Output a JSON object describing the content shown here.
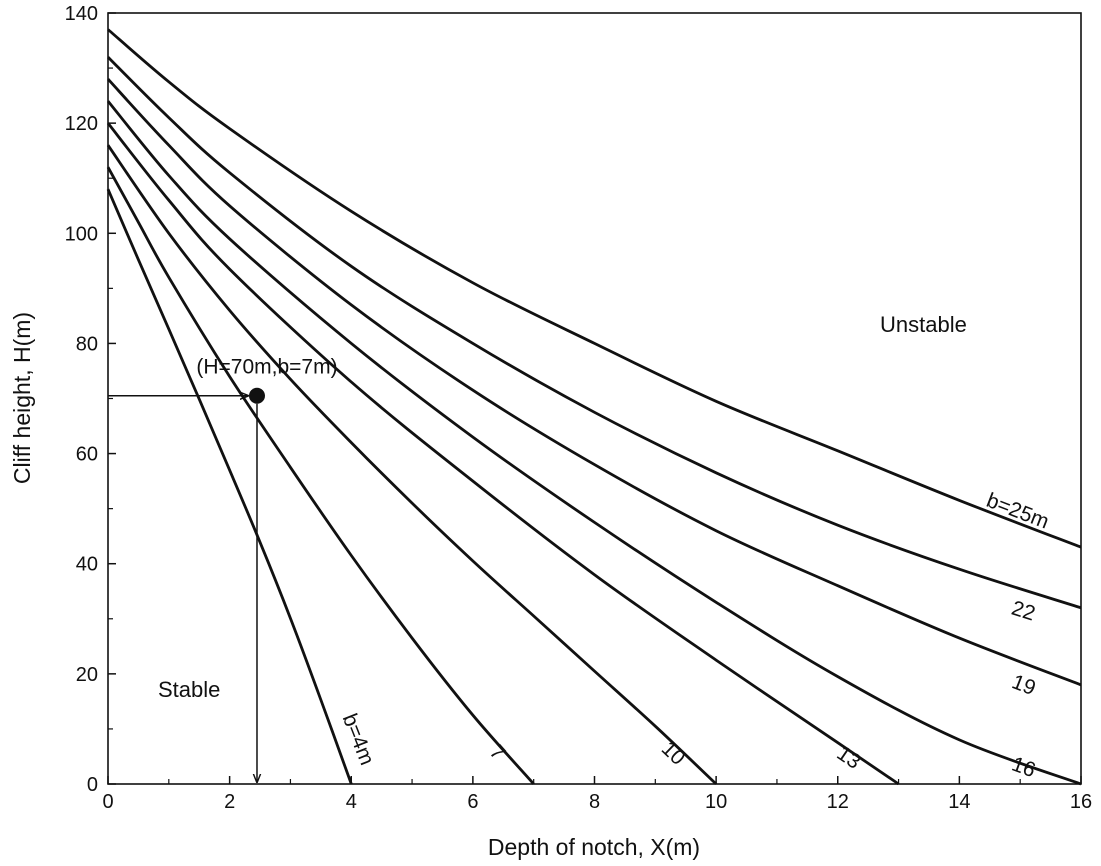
{
  "chart_data": {
    "type": "line",
    "title": "",
    "xlabel": "Depth of notch, X(m)",
    "ylabel": "Cliff height, H(m)",
    "xlim": [
      0,
      16
    ],
    "ylim": [
      0,
      140
    ],
    "xticks": [
      0,
      2,
      4,
      6,
      8,
      10,
      12,
      14,
      16
    ],
    "yticks": [
      0,
      20,
      40,
      60,
      80,
      100,
      120,
      140
    ],
    "grid": false,
    "legend": "none",
    "series": [
      {
        "name": "b=4m",
        "x": [
          0,
          0.5,
          1,
          1.5,
          2,
          2.5,
          3,
          3.5,
          4
        ],
        "y": [
          108,
          95.2,
          82.6,
          69.9,
          57,
          43.9,
          30.1,
          15.3,
          0
        ]
      },
      {
        "name": "7",
        "x": [
          0,
          0.5,
          1,
          2,
          3,
          4,
          5,
          6,
          7
        ],
        "y": [
          112,
          102,
          92,
          74,
          57.5,
          41.5,
          26.5,
          12.5,
          0
        ]
      },
      {
        "name": "10",
        "x": [
          0,
          1,
          2,
          3,
          4,
          5,
          6,
          7,
          8,
          9,
          10
        ],
        "y": [
          116,
          100,
          86,
          73.5,
          62,
          51,
          40.5,
          30.5,
          20.5,
          10.5,
          0
        ]
      },
      {
        "name": "13",
        "x": [
          0,
          1,
          2,
          4,
          6,
          8,
          10,
          12,
          13
        ],
        "y": [
          120,
          106,
          93.5,
          73,
          55,
          38,
          22.5,
          7.5,
          0
        ]
      },
      {
        "name": "16",
        "x": [
          0,
          1,
          2,
          4,
          6,
          8,
          10,
          12,
          14,
          16
        ],
        "y": [
          124,
          110.5,
          99,
          80,
          63,
          47.5,
          33,
          19.5,
          8,
          0
        ]
      },
      {
        "name": "19",
        "x": [
          0,
          1,
          2,
          4,
          6,
          8,
          10,
          12,
          14,
          16
        ],
        "y": [
          128,
          116,
          105,
          87,
          71.5,
          58,
          46,
          36,
          26.5,
          18
        ]
      },
      {
        "name": "22",
        "x": [
          0,
          1,
          2,
          4,
          6,
          8,
          10,
          12,
          14,
          16
        ],
        "y": [
          132,
          121,
          111,
          94,
          80,
          67.5,
          56.5,
          47,
          39,
          32
        ]
      },
      {
        "name": "b=25m",
        "x": [
          0,
          1,
          2,
          4,
          6,
          8,
          10,
          12,
          14,
          16
        ],
        "y": [
          137,
          127.5,
          119,
          104,
          91,
          80,
          69.5,
          60.5,
          51.5,
          43
        ]
      }
    ],
    "annotations": {
      "point": {
        "label": "(H=70m,b=7m)",
        "x": 2.45,
        "y": 70.5
      },
      "regions": [
        "Stable",
        "Unstable"
      ]
    }
  }
}
